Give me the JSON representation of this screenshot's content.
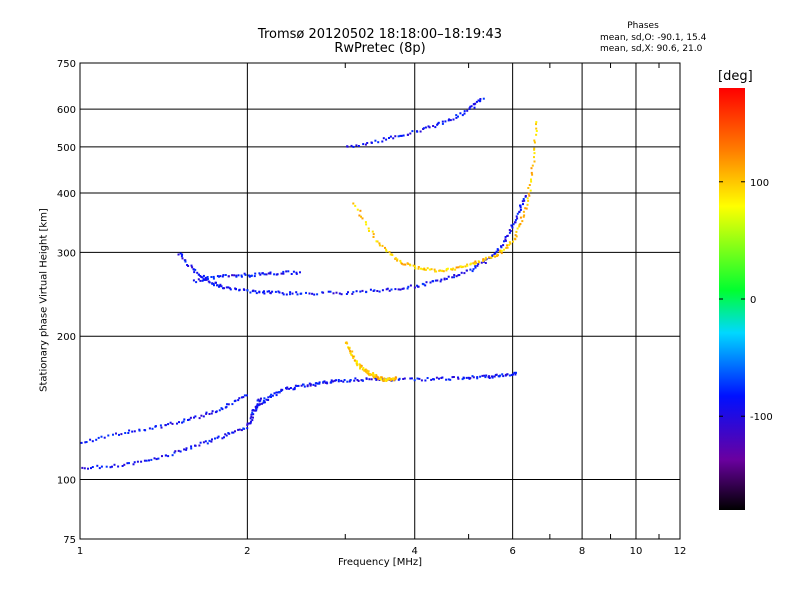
{
  "title": {
    "line1": "Tromsø 20120502 18:18:00–18:19:43",
    "line2": "RwPretec (8p)"
  },
  "phase_stats": {
    "title": "Phases",
    "line1": "mean, sd,O: -90.1, 15.4",
    "line2": "mean, sd,X:  90.6, 21.0"
  },
  "colorbar": {
    "unit": "[deg]",
    "ticks": [
      "100",
      "0",
      "-100"
    ],
    "range": [
      -180,
      180
    ]
  },
  "chart_data": {
    "type": "scatter",
    "title": "Tromsø 20120502 18:18:00–18:19:43",
    "subtitle": "RwPretec (8p)",
    "xlabel": "Frequency [MHz]",
    "ylabel": "Stationary phase Virtual Height [km]",
    "xscale": "log",
    "yscale": "log",
    "xlim": [
      1,
      12
    ],
    "ylim": [
      75,
      750
    ],
    "xticks": [
      1,
      2,
      4,
      6,
      8,
      10,
      12
    ],
    "xtick_labels": [
      "1",
      "2",
      "4",
      "6",
      "8",
      "10",
      "12"
    ],
    "yticks": [
      75,
      100,
      200,
      300,
      400,
      500,
      600,
      750
    ],
    "ytick_labels": [
      "75",
      "100",
      "200",
      "300",
      "400",
      "500",
      "600",
      "750"
    ],
    "grid": true,
    "traces": [
      {
        "mode": "O",
        "phase": -90,
        "x": [
          1.0,
          1.2,
          1.4,
          1.6,
          1.8,
          2.0,
          2.05,
          2.1
        ],
        "y": [
          106,
          108,
          112,
          118,
          124,
          130,
          140,
          150
        ]
      },
      {
        "mode": "O",
        "phase": -90,
        "x": [
          1.0,
          1.2,
          1.4,
          1.6,
          1.8,
          2.0
        ],
        "y": [
          120,
          126,
          130,
          135,
          142,
          152
        ]
      },
      {
        "mode": "O",
        "phase": -90,
        "x": [
          2.05,
          2.15,
          2.3,
          2.5,
          2.7,
          2.9,
          3.2,
          3.6,
          4.2,
          4.8,
          5.3,
          5.7,
          6.1
        ],
        "y": [
          140,
          148,
          155,
          158,
          160,
          162,
          163,
          163,
          163,
          164,
          165,
          166,
          168
        ]
      },
      {
        "mode": "O",
        "phase": -90,
        "x": [
          1.5,
          1.6,
          1.7,
          1.8,
          2.0,
          2.2,
          2.5,
          3.0,
          3.5,
          4.0,
          4.5,
          5.0,
          5.5,
          5.8,
          6.1,
          6.3
        ],
        "y": [
          300,
          275,
          262,
          255,
          250,
          248,
          247,
          248,
          251,
          256,
          264,
          276,
          295,
          320,
          360,
          400
        ]
      },
      {
        "mode": "O",
        "phase": -90,
        "x": [
          1.6,
          1.8,
          2.0,
          2.2,
          2.5
        ],
        "y": [
          262,
          270,
          270,
          272,
          274
        ]
      },
      {
        "mode": "O",
        "phase": -90,
        "x": [
          3.0,
          3.5,
          4.0,
          4.5,
          5.0,
          5.3
        ],
        "y": [
          500,
          520,
          540,
          565,
          600,
          640
        ]
      },
      {
        "mode": "X",
        "phase": 100,
        "x": [
          3.1,
          3.4,
          3.7,
          4.0,
          4.4,
          4.8,
          5.2,
          5.6,
          6.0,
          6.3,
          6.5,
          6.6
        ],
        "y": [
          380,
          320,
          290,
          280,
          276,
          280,
          288,
          298,
          320,
          370,
          450,
          580
        ]
      },
      {
        "mode": "X",
        "phase": 100,
        "x": [
          3.0,
          3.1,
          3.2,
          3.3,
          3.4,
          3.5,
          3.6,
          3.7
        ],
        "y": [
          195,
          180,
          172,
          168,
          165,
          163,
          163,
          164
        ]
      }
    ]
  }
}
